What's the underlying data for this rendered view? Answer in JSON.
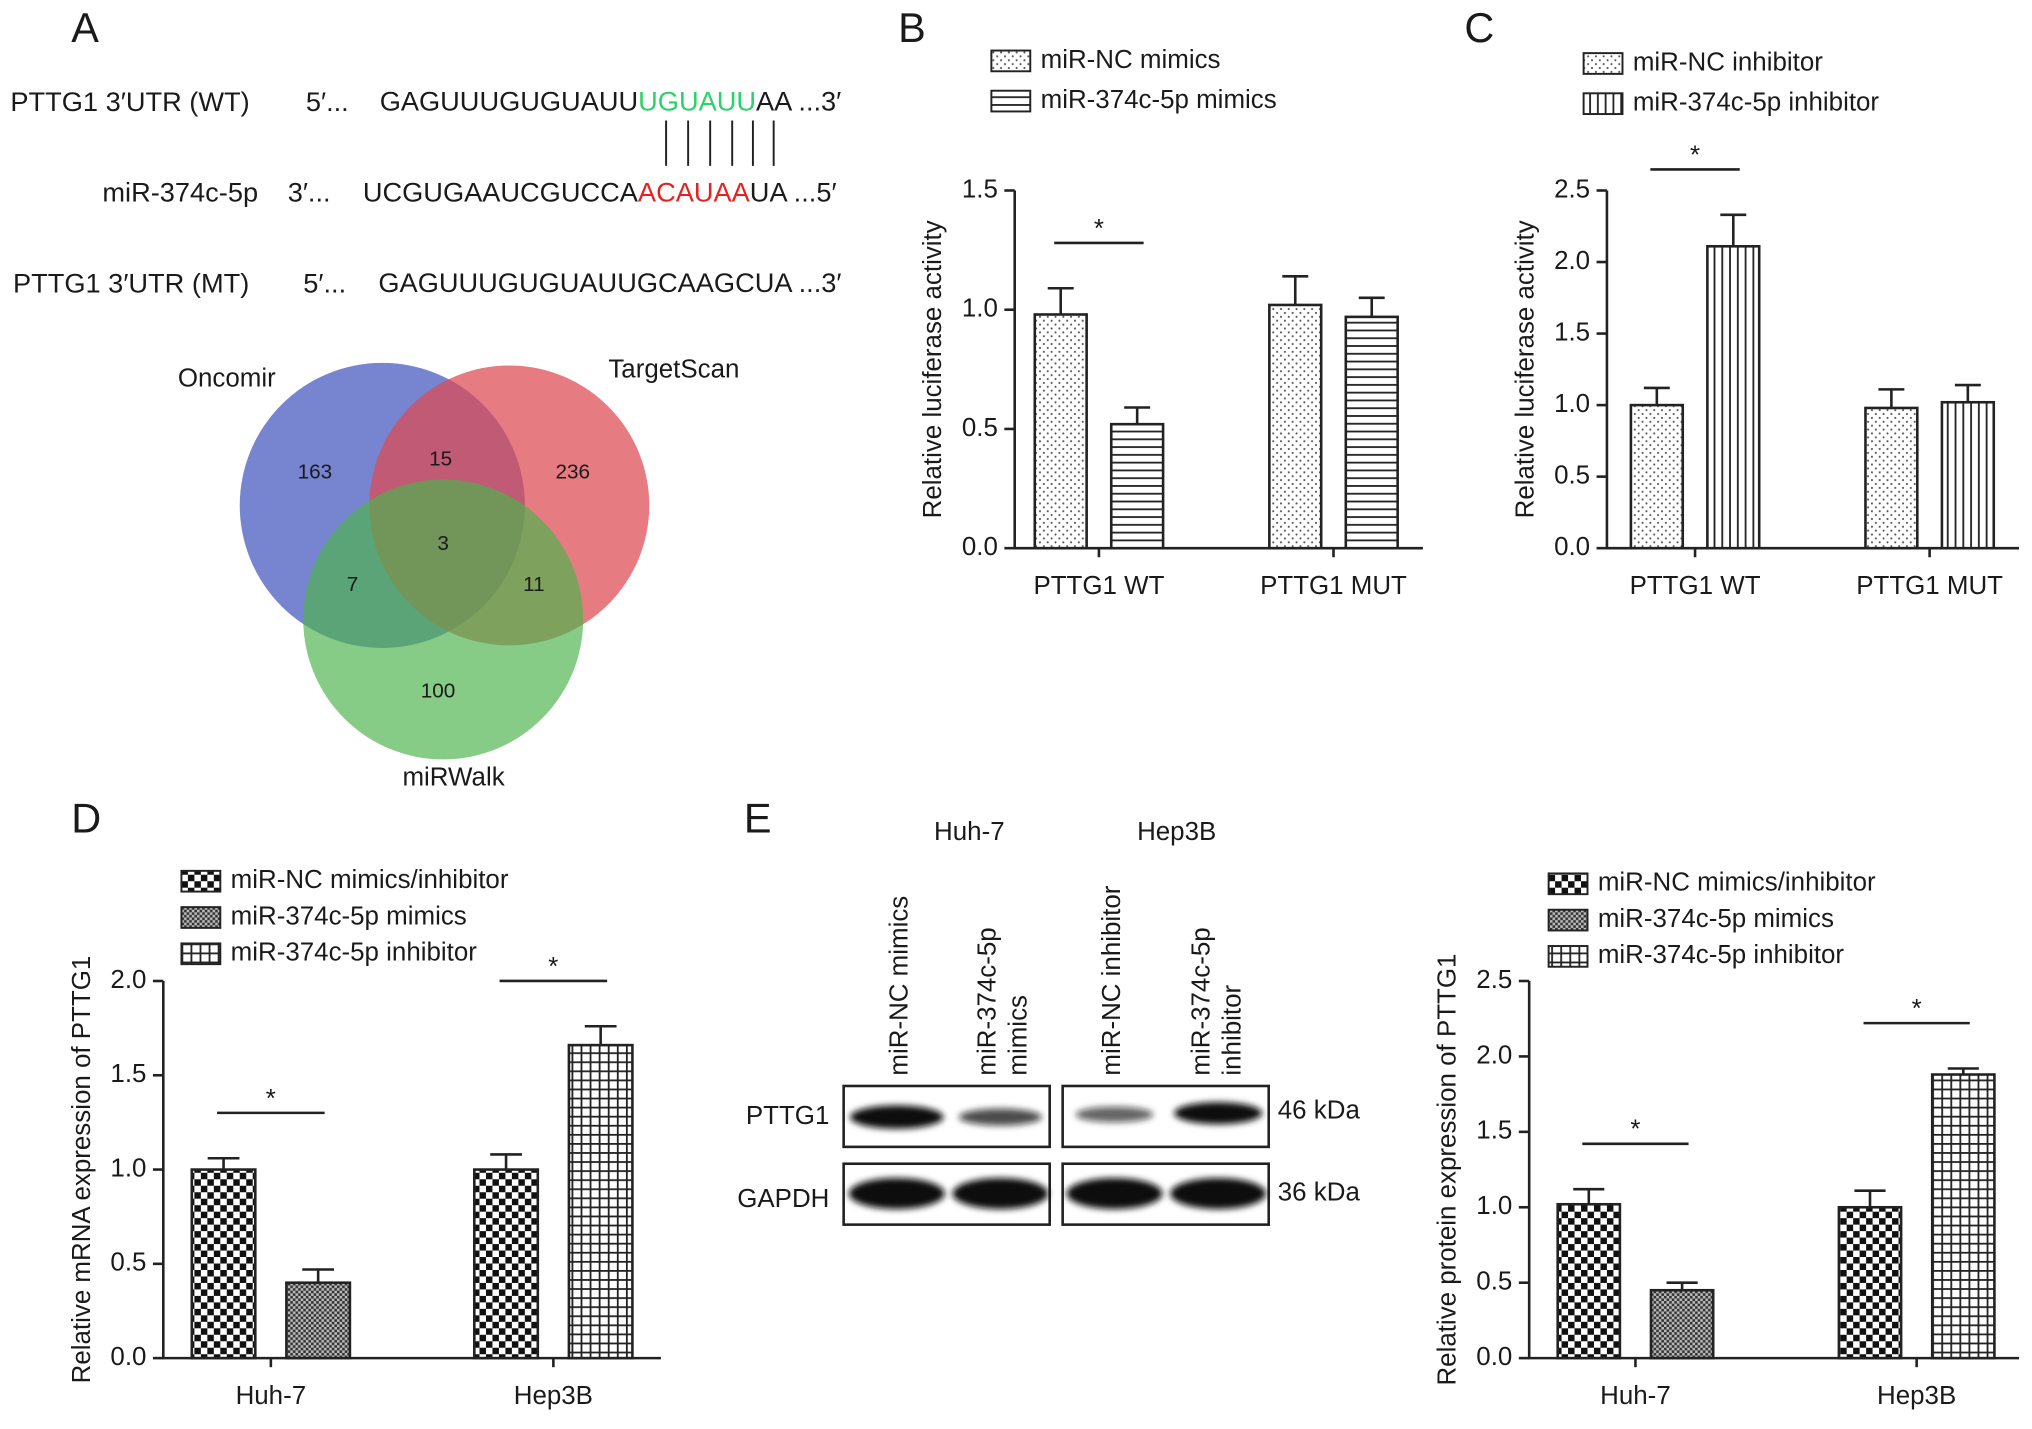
{
  "panel_labels": [
    "A",
    "B",
    "C",
    "D",
    "E"
  ],
  "sequences": [
    {
      "name": "PTTG1 3′UTR (WT)",
      "end5": "5′...",
      "parts": [
        "GAGUUUGUGUAUU",
        "UGUAUU",
        "AA ...3′"
      ]
    },
    {
      "name": "miR-374c-5p",
      "end5": "3′...",
      "parts": [
        "UCGUGAAUCGUCCA",
        "ACAUAA",
        "UA ...5′"
      ]
    },
    {
      "name": "PTTG1 3′UTR (MT)",
      "end5": "5′...",
      "parts": [
        "GAGUUUGUGUAUUGCAAGCUA ...3′"
      ]
    }
  ],
  "venn": {
    "sets": [
      "Oncomir",
      "TargetScan",
      "miRWalk"
    ],
    "counts": [
      "163",
      "15",
      "236",
      "3",
      "7",
      "11",
      "100"
    ]
  },
  "blot": {
    "cell_lines": [
      "Huh-7",
      "Hep3B"
    ],
    "lanes": [
      [
        "miR-NC mimics"
      ],
      [
        "miR-374c-5p",
        "mimics"
      ],
      [
        "miR-NC inhibitor"
      ],
      [
        "miR-374c-5p",
        "inhibitor"
      ]
    ],
    "proteins": [
      "PTTG1",
      "GAPDH"
    ],
    "sizes": [
      "46 kDa",
      "36 kDa"
    ]
  },
  "chart_data": [
    {
      "type": "bar",
      "y_label": "Relative luciferase activity",
      "categories": [
        "PTTG1 WT",
        "PTTG1 MUT"
      ],
      "series": [
        {
          "name": "miR-NC mimics",
          "pattern": "dots",
          "values": [
            0.98,
            1.02
          ],
          "errors": [
            0.11,
            0.12
          ]
        },
        {
          "name": "miR-374c-5p mimics",
          "pattern": "hlines",
          "values": [
            0.52,
            0.97
          ],
          "errors": [
            0.07,
            0.08
          ]
        }
      ],
      "significance_labels": [
        "*",
        null
      ],
      "ylim": [
        0,
        1.5
      ],
      "yticks": [
        {
          "value": 0,
          "label": "0.0"
        },
        0.5,
        {
          "value": 1,
          "label": "1.0"
        },
        1.5
      ]
    },
    {
      "type": "bar",
      "y_label": "Relative luciferase activity",
      "categories": [
        "PTTG1 WT",
        "PTTG1 MUT"
      ],
      "series": [
        {
          "name": "miR-NC inhibitor",
          "pattern": "dots",
          "values": [
            1.0,
            0.98
          ],
          "errors": [
            0.12,
            0.13
          ]
        },
        {
          "name": "miR-374c-5p inhibitor",
          "pattern": "vlines",
          "values": [
            2.11,
            1.02
          ],
          "errors": [
            0.22,
            0.12
          ]
        }
      ],
      "significance_labels": [
        "*",
        null
      ],
      "ylim": [
        0,
        2.5
      ],
      "yticks": [
        {
          "value": 0,
          "label": "0.0"
        },
        0.5,
        {
          "value": 1,
          "label": "1.0"
        },
        1.5,
        {
          "value": 2,
          "label": "2.0"
        },
        2.5
      ]
    },
    {
      "type": "bar",
      "y_label": "Relative mRNA expression of PTTG1",
      "categories": [
        "Huh-7",
        "Hep3B"
      ],
      "series": [
        {
          "name": "miR-NC mimics/inhibitor",
          "pattern": "checker",
          "values": [
            1.0,
            1.0
          ],
          "errors": [
            0.06,
            0.08
          ]
        },
        {
          "name": "miR-374c-5p mimics",
          "pattern": "fine",
          "values": [
            0.4,
            null
          ],
          "errors": [
            0.07,
            null
          ]
        },
        {
          "name": "miR-374c-5p inhibitor",
          "pattern": "grid",
          "values": [
            null,
            1.66
          ],
          "errors": [
            null,
            0.1
          ]
        }
      ],
      "significance_labels": [
        "*",
        "*"
      ],
      "ylim": [
        0,
        2.0
      ],
      "yticks": [
        {
          "value": 0,
          "label": "0.0"
        },
        0.5,
        {
          "value": 1,
          "label": "1.0"
        },
        1.5,
        {
          "value": 2,
          "label": "2.0"
        }
      ]
    },
    {
      "type": "bar",
      "y_label": "Relative protein expression of PTTG1",
      "categories": [
        "Huh-7",
        "Hep3B"
      ],
      "series": [
        {
          "name": "miR-NC mimics/inhibitor",
          "pattern": "checker",
          "values": [
            1.02,
            1.0
          ],
          "errors": [
            0.1,
            0.11
          ]
        },
        {
          "name": "miR-374c-5p mimics",
          "pattern": "fine",
          "values": [
            0.45,
            null
          ],
          "errors": [
            0.05,
            null
          ]
        },
        {
          "name": "miR-374c-5p inhibitor",
          "pattern": "grid",
          "values": [
            null,
            1.88
          ],
          "errors": [
            null,
            0.04
          ]
        }
      ],
      "significance_labels": [
        "*",
        "*"
      ],
      "ylim": [
        0,
        2.5
      ],
      "yticks": [
        {
          "value": 0,
          "label": "0.0"
        },
        0.5,
        {
          "value": 1,
          "label": "1.0"
        },
        1.5,
        {
          "value": 2,
          "label": "2.0"
        },
        2.5
      ]
    }
  ]
}
